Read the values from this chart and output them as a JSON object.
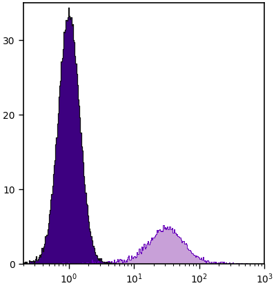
{
  "background_color": "#ffffff",
  "xlim": [
    0.2,
    1000
  ],
  "ylim": [
    0,
    35
  ],
  "yticks": [
    0,
    10,
    20,
    30
  ],
  "xlabel": "",
  "ylabel": "",
  "hist1_color": "#3d0080",
  "hist1_edge_color": "#111111",
  "hist2_color": "#c8a0d8",
  "hist2_edge_color": "#6600bb",
  "hist1_peak_log10": 0.0,
  "hist1_peak_height": 33.0,
  "hist1_sigma_log10": 0.16,
  "hist2_peak_log10": 1.5,
  "hist2_peak_height": 4.5,
  "hist2_sigma_log10": 0.25,
  "noise_seed": 7,
  "n_bins": 300
}
